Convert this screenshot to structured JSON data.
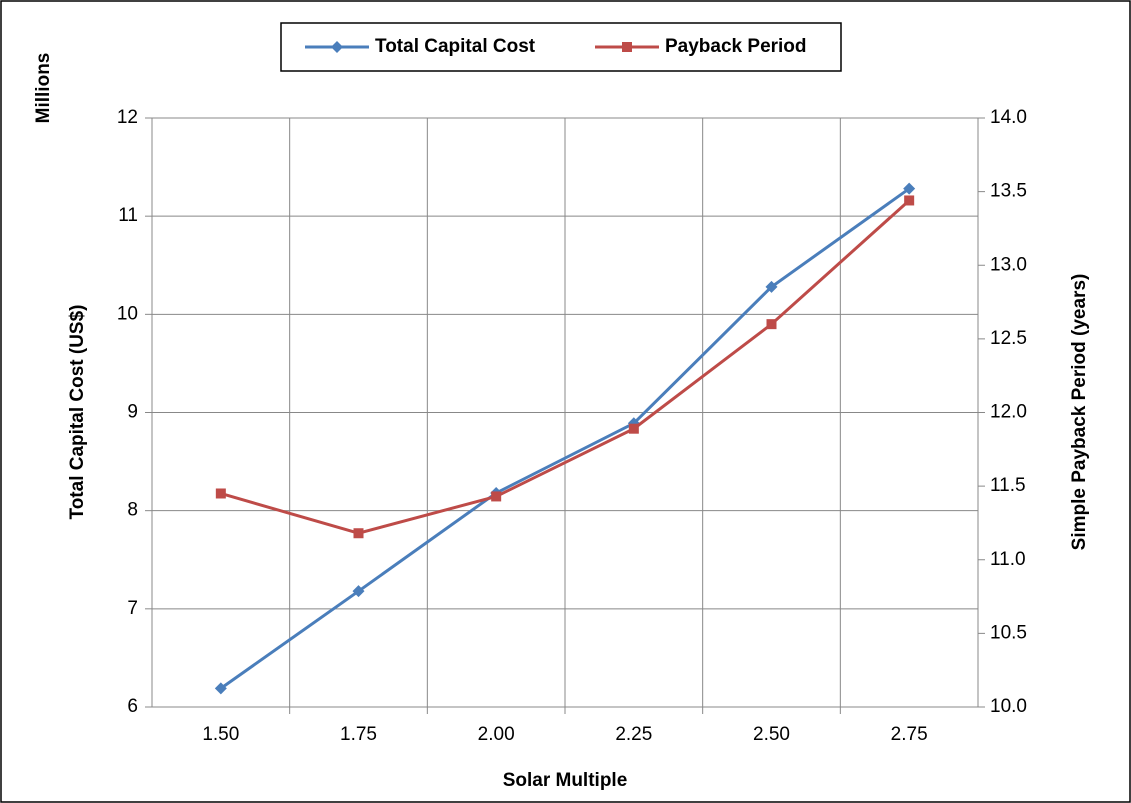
{
  "chart_data": {
    "type": "line",
    "y_label": "Total Capital Cost (US$)",
    "y2_label": "Simple Payback Period (years)",
    "y_unit_label": "Millions",
    "x_label": "Solar Multiple",
    "categories": [
      "1.50",
      "1.75",
      "2.00",
      "2.25",
      "2.50",
      "2.75"
    ],
    "series": [
      {
        "name": "Total Capital Cost",
        "color": "#4a7ebb",
        "marker": "diamond",
        "values": [
          6.19,
          7.18,
          8.18,
          8.89,
          10.28,
          11.28
        ]
      },
      {
        "name": "Payback Period",
        "color": "#be4b48",
        "marker": "square",
        "axis": "y2",
        "values": [
          11.45,
          11.18,
          11.43,
          11.89,
          12.6,
          13.44
        ]
      }
    ],
    "ylim": [
      6,
      12
    ],
    "yticks": [
      6,
      7,
      8,
      9,
      10,
      11,
      12
    ],
    "y2lim": [
      10,
      14
    ],
    "y2ticks": [
      {
        "value": 10,
        "label": "10.0"
      },
      {
        "value": 10.5,
        "label": "10.5"
      },
      {
        "value": 11,
        "label": "11.0"
      },
      {
        "value": 11.5,
        "label": "11.5"
      },
      {
        "value": 12,
        "label": "12.0"
      },
      {
        "value": 12.5,
        "label": "12.5"
      },
      {
        "value": 13,
        "label": "13.0"
      },
      {
        "value": 13.5,
        "label": "13.5"
      },
      {
        "value": 14,
        "label": "14.0"
      }
    ],
    "grid": true,
    "legend": "top"
  }
}
